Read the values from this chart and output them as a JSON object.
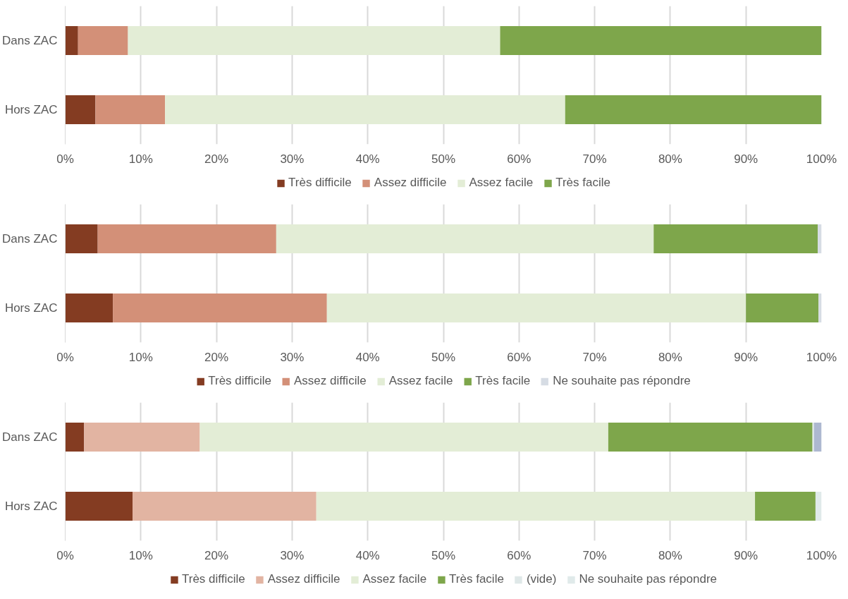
{
  "chart_data": [
    {
      "type": "bar",
      "orientation": "horizontal",
      "stacked": true,
      "categories": [
        "Dans ZAC",
        "Hors ZAC"
      ],
      "xlim": [
        0,
        100
      ],
      "xticks": [
        {
          "value": 0,
          "label": "0%"
        },
        {
          "value": 10,
          "label": "10%"
        },
        {
          "value": 20,
          "label": "20%"
        },
        {
          "value": 30,
          "label": "30%"
        },
        {
          "value": 40,
          "label": "40%"
        },
        {
          "value": 50,
          "label": "50%"
        },
        {
          "value": 60,
          "label": "60%"
        },
        {
          "value": 70,
          "label": "70%"
        },
        {
          "value": 80,
          "label": "80%"
        },
        {
          "value": 90,
          "label": "90%"
        },
        {
          "value": 100,
          "label": "100%"
        }
      ],
      "grid": "x",
      "legend": "bottom",
      "series": [
        {
          "name": "Très difficile",
          "color": "#843c22",
          "values": [
            1.7,
            4.0
          ]
        },
        {
          "name": "Assez difficile",
          "color": "#d39078",
          "values": [
            6.6,
            9.2
          ]
        },
        {
          "name": "Assez facile",
          "color": "#e3edd6",
          "values": [
            49.2,
            52.9
          ]
        },
        {
          "name": "Très facile",
          "color": "#7ea64b",
          "values": [
            42.5,
            33.9
          ]
        }
      ]
    },
    {
      "type": "bar",
      "orientation": "horizontal",
      "stacked": true,
      "categories": [
        "Dans ZAC",
        "Hors ZAC"
      ],
      "xlim": [
        0,
        100
      ],
      "xticks": [
        {
          "value": 0,
          "label": "0%"
        },
        {
          "value": 10,
          "label": "10%"
        },
        {
          "value": 20,
          "label": "20%"
        },
        {
          "value": 30,
          "label": "30%"
        },
        {
          "value": 40,
          "label": "40%"
        },
        {
          "value": 50,
          "label": "50%"
        },
        {
          "value": 60,
          "label": "60%"
        },
        {
          "value": 70,
          "label": "70%"
        },
        {
          "value": 80,
          "label": "80%"
        },
        {
          "value": 90,
          "label": "90%"
        },
        {
          "value": 100,
          "label": "100%"
        }
      ],
      "grid": "x",
      "legend": "bottom",
      "series": [
        {
          "name": "Très difficile",
          "color": "#843c22",
          "values": [
            4.3,
            6.3
          ]
        },
        {
          "name": "Assez difficile",
          "color": "#d39078",
          "values": [
            23.6,
            28.3
          ]
        },
        {
          "name": "Assez facile",
          "color": "#e3edd6",
          "values": [
            49.9,
            55.4
          ]
        },
        {
          "name": "Très facile",
          "color": "#7ea64b",
          "values": [
            21.7,
            9.6
          ]
        },
        {
          "name": "Ne souhaite pas répondre",
          "color": "#d6dce4",
          "values": [
            0.5,
            0.4
          ]
        }
      ]
    },
    {
      "type": "bar",
      "orientation": "horizontal",
      "stacked": true,
      "categories": [
        "Dans ZAC",
        "Hors ZAC"
      ],
      "xlim": [
        0,
        100
      ],
      "xticks": [
        {
          "value": 0,
          "label": "0%"
        },
        {
          "value": 10,
          "label": "10%"
        },
        {
          "value": 20,
          "label": "20%"
        },
        {
          "value": 30,
          "label": "30%"
        },
        {
          "value": 40,
          "label": "40%"
        },
        {
          "value": 50,
          "label": "50%"
        },
        {
          "value": 60,
          "label": "60%"
        },
        {
          "value": 70,
          "label": "70%"
        },
        {
          "value": 80,
          "label": "80%"
        },
        {
          "value": 90,
          "label": "90%"
        },
        {
          "value": 100,
          "label": "100%"
        }
      ],
      "grid": "x",
      "legend": "bottom",
      "series": [
        {
          "name": "Très difficile",
          "color": "#843c22",
          "values": [
            2.5,
            8.9
          ]
        },
        {
          "name": "Assez difficile",
          "color": "#e2b4a2",
          "values": [
            15.3,
            24.3
          ]
        },
        {
          "name": "Assez facile",
          "color": "#e3edd6",
          "values": [
            54.0,
            58.0
          ]
        },
        {
          "name": "Très facile",
          "color": "#7ea64b",
          "values": [
            27.0,
            8.0
          ]
        },
        {
          "name": "(vide)",
          "color": "#dfe8e8",
          "values": [
            0.2,
            null
          ]
        },
        {
          "name": "Ne souhaite pas répondre",
          "color": "#e0eaea",
          "colors": [
            "#adb8d0",
            "#e0eaea"
          ],
          "values": [
            1.0,
            0.8
          ]
        }
      ]
    }
  ]
}
